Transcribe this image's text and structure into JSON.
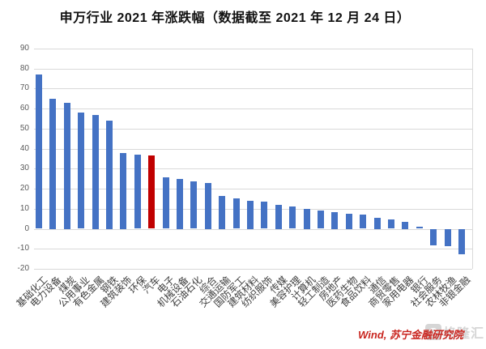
{
  "title": "申万行业 2021 年涨跌幅（数据截至 2021 年 12 月 24 日）",
  "source": "Wind, 苏宁金融研究院",
  "watermark": {
    "logo": "G",
    "text": "格隆汇"
  },
  "chart_data": {
    "type": "bar",
    "title": "申万行业 2021 年涨跌幅（数据截至 2021 年 12 月 24 日）",
    "categories": [
      "基础化工",
      "电力设备",
      "煤炭",
      "公用事业",
      "有色金属",
      "钢铁",
      "建筑装饰",
      "环保",
      "汽车",
      "电子",
      "机械设备",
      "石油石化",
      "综合",
      "交通运输",
      "国防军工",
      "建筑材料",
      "纺织服饰",
      "传媒",
      "美容护理",
      "计算机",
      "轻工制造",
      "房地产",
      "医药生物",
      "食品饮料",
      "通信",
      "商贸零售",
      "家用电器",
      "银行",
      "社会服务",
      "农林牧渔",
      "非银金融"
    ],
    "values": [
      77,
      65,
      63,
      58,
      57,
      54,
      38,
      37,
      36.5,
      25.5,
      25,
      23.5,
      23,
      16.5,
      15,
      14,
      13.5,
      12,
      11,
      10,
      9,
      8.5,
      7.5,
      7,
      5.5,
      4.5,
      3.5,
      1,
      -8,
      -8.5,
      -12.5
    ],
    "highlight_category": "汽车",
    "highlight_index": 8,
    "bar_color": "#4472c4",
    "highlight_color": "#c00000",
    "grid_color": "#d9d9d9",
    "xlabel": "",
    "ylabel": "",
    "ylim": [
      -20,
      90
    ],
    "ytick_step": 10,
    "yticks": [
      "90",
      "80",
      "70",
      "60",
      "50",
      "40",
      "30",
      "20",
      "10",
      "0",
      "-10",
      "-20"
    ],
    "grid": true,
    "legend": "none"
  }
}
